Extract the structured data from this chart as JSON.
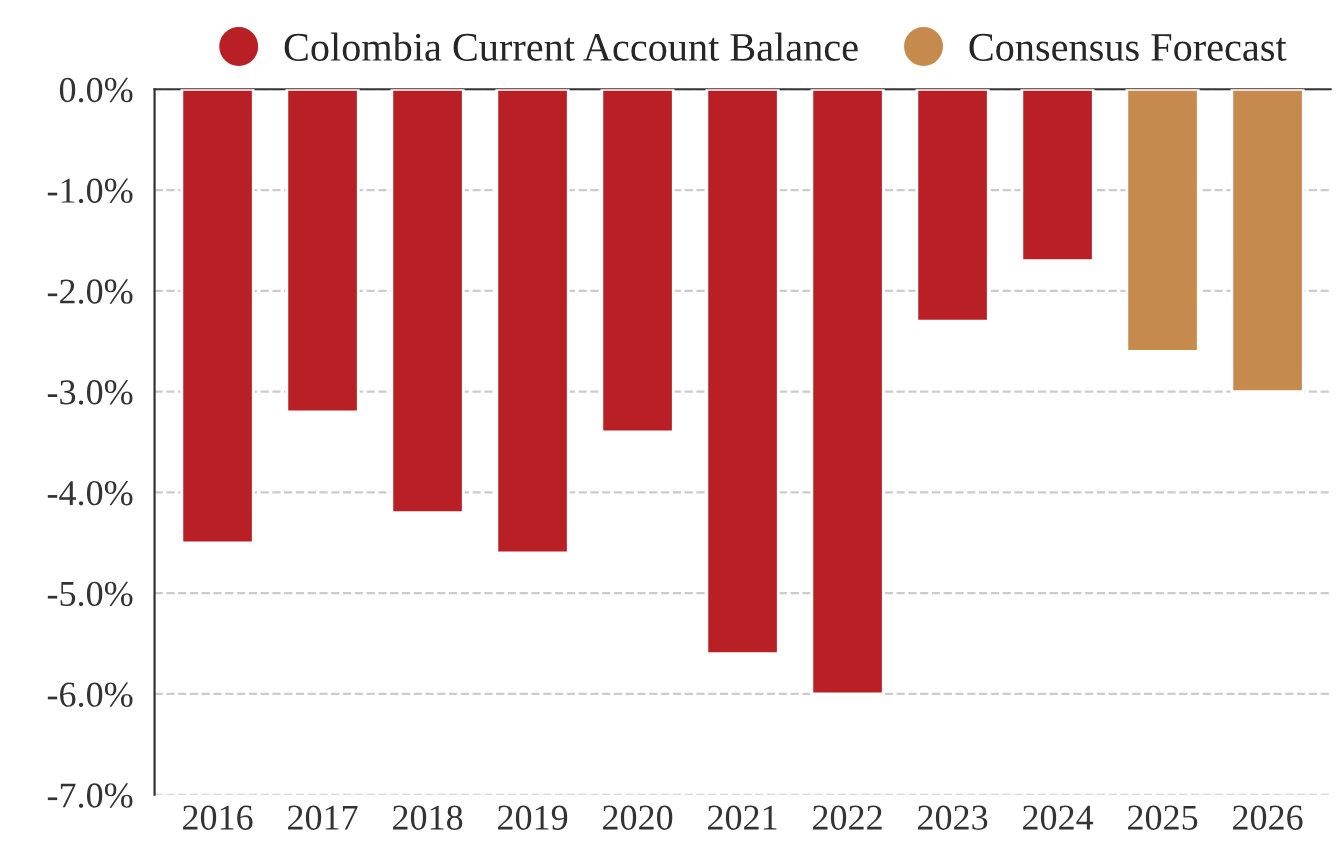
{
  "chart_data": {
    "type": "bar",
    "categories": [
      "2016",
      "2017",
      "2018",
      "2019",
      "2020",
      "2021",
      "2022",
      "2023",
      "2024",
      "2025",
      "2026"
    ],
    "series": [
      {
        "name": "Colombia Current Account Balance",
        "color": "#b82025",
        "values": [
          -4.5,
          -3.2,
          -4.2,
          -4.6,
          -3.4,
          -5.6,
          -6.0,
          -2.3,
          -1.7,
          null,
          null
        ]
      },
      {
        "name": "Consensus Forecast",
        "color": "#c58a4c",
        "values": [
          null,
          null,
          null,
          null,
          null,
          null,
          null,
          null,
          null,
          -2.6,
          -3.0
        ]
      }
    ],
    "ylim": [
      -7,
      0
    ],
    "yticks": [
      {
        "value": 0,
        "label": "0.0%"
      },
      {
        "value": -1,
        "label": "-1.0%"
      },
      {
        "value": -2,
        "label": "-2.0%"
      },
      {
        "value": -3,
        "label": "-3.0%"
      },
      {
        "value": -4,
        "label": "-4.0%"
      },
      {
        "value": -5,
        "label": "-5.0%"
      },
      {
        "value": -6,
        "label": "-6.0%"
      },
      {
        "value": -7,
        "label": "-7.0%"
      }
    ],
    "grid": "y",
    "legend": "top"
  }
}
